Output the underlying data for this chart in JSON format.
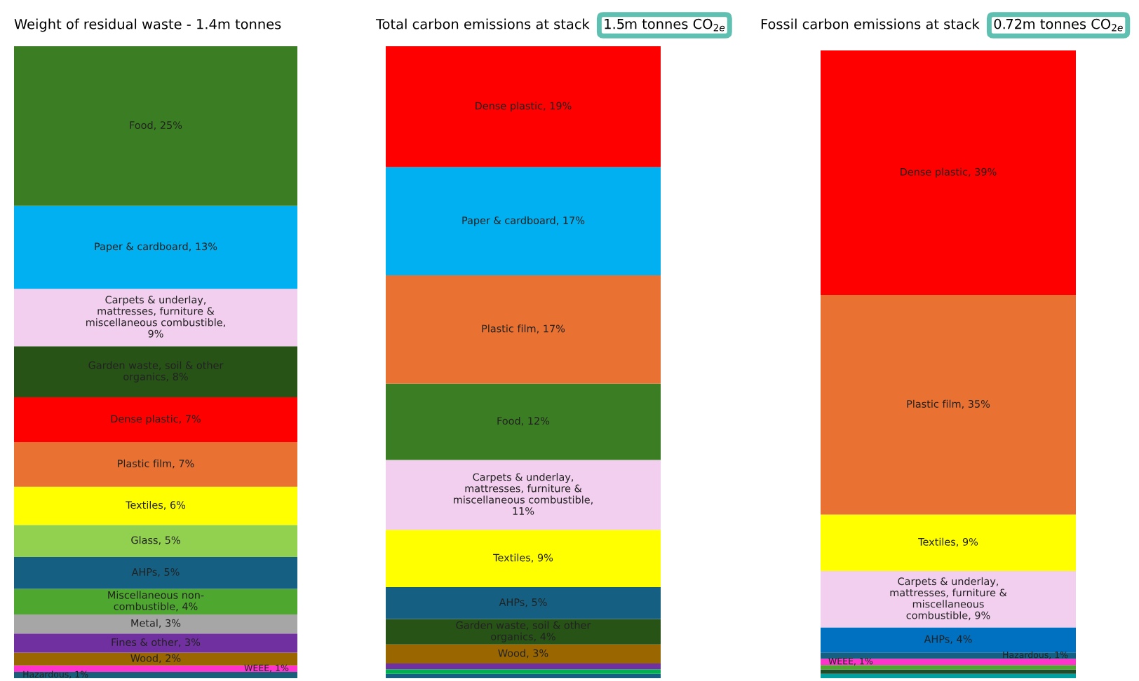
{
  "chart_data": [
    {
      "type": "bar",
      "stacked": true,
      "title": "Weight of residual waste - 1.4m tonnes",
      "categories": [
        null
      ],
      "series": [
        {
          "color": "#1a5f7a",
          "values": [
            1
          ],
          "value_labels": [
            "Hazardous, 1%"
          ]
        },
        {
          "color": "#ff33cc",
          "values": [
            1
          ],
          "value_labels": [
            "WEEE, 1%"
          ]
        },
        {
          "color": "#996600",
          "values": [
            2
          ],
          "value_labels": [
            "Wood, 2%"
          ]
        },
        {
          "color": "#7030a0",
          "values": [
            3
          ],
          "value_labels": [
            "Fines & other, 3%"
          ]
        },
        {
          "color": "#a6a6a6",
          "values": [
            3
          ],
          "value_labels": [
            "Metal, 3%"
          ]
        },
        {
          "color": "#4ea72e",
          "values": [
            4
          ],
          "value_labels": [
            "Miscellaneous non-\ncombustible, 4%"
          ]
        },
        {
          "color": "#156082",
          "values": [
            5
          ],
          "value_labels": [
            "AHPs, 5%"
          ]
        },
        {
          "color": "#92d050",
          "values": [
            5
          ],
          "value_labels": [
            "Glass, 5%"
          ]
        },
        {
          "color": "#ffff00",
          "values": [
            6
          ],
          "value_labels": [
            "Textiles, 6%"
          ]
        },
        {
          "color": "#e97132",
          "values": [
            7
          ],
          "value_labels": [
            "Plastic film, 7%"
          ]
        },
        {
          "color": "#ff0000",
          "values": [
            7
          ],
          "value_labels": [
            "Dense plastic, 7%"
          ]
        },
        {
          "color": "#275317",
          "values": [
            8
          ],
          "value_labels": [
            "Garden waste, soil & other\norganics, 8%"
          ]
        },
        {
          "color": "#f2cfee",
          "values": [
            9
          ],
          "value_labels": [
            "Carpets & underlay,\nmattresses, furniture &\nmiscellaneous combustible,\n9%"
          ]
        },
        {
          "color": "#00b0f0",
          "values": [
            13
          ],
          "value_labels": [
            "Paper & cardboard, 13%"
          ]
        },
        {
          "color": "#3a7d22",
          "values": [
            25
          ],
          "value_labels": [
            "Food, 25%"
          ]
        }
      ]
    },
    {
      "type": "bar",
      "stacked": true,
      "title": "Total carbon emissions at stack",
      "annotations": [
        "1.5m tonnes CO$_{2e}$"
      ],
      "categories": [
        null
      ],
      "series": [
        {
          "color": "#156082",
          "values": [
            0.7
          ],
          "value_labels": [
            null
          ]
        },
        {
          "color": "#00b050",
          "values": [
            0.7
          ],
          "value_labels": [
            null
          ]
        },
        {
          "color": "#7030a0",
          "values": [
            0.9
          ],
          "value_labels": [
            null
          ]
        },
        {
          "color": "#996600",
          "values": [
            3
          ],
          "value_labels": [
            "Wood, 3%"
          ]
        },
        {
          "color": "#275317",
          "values": [
            4
          ],
          "value_labels": [
            "Garden waste, soil & other\norganics, 4%"
          ]
        },
        {
          "color": "#156082",
          "values": [
            5
          ],
          "value_labels": [
            "AHPs, 5%"
          ]
        },
        {
          "color": "#ffff00",
          "values": [
            9
          ],
          "value_labels": [
            "Textiles, 9%"
          ]
        },
        {
          "color": "#f2cfee",
          "values": [
            11
          ],
          "value_labels": [
            "Carpets & underlay,\nmattresses, furniture &\nmiscellaneous combustible,\n11%"
          ]
        },
        {
          "color": "#3a7d22",
          "values": [
            12
          ],
          "value_labels": [
            "Food, 12%"
          ]
        },
        {
          "color": "#e97132",
          "values": [
            17
          ],
          "value_labels": [
            "Plastic film, 17%"
          ]
        },
        {
          "color": "#00b0f0",
          "values": [
            17
          ],
          "value_labels": [
            "Paper & cardboard, 17%"
          ]
        },
        {
          "color": "#ff0000",
          "values": [
            19
          ],
          "value_labels": [
            "Dense plastic, 19%"
          ]
        }
      ]
    },
    {
      "type": "bar",
      "stacked": true,
      "title": "Fossil carbon emissions at stack",
      "annotations": [
        "0.72m tonnes CO$_{2e}$"
      ],
      "categories": [
        null
      ],
      "series": [
        {
          "color": "#00a0a0",
          "values": [
            0.7
          ],
          "value_labels": [
            null
          ]
        },
        {
          "color": "#1e4d2b",
          "values": [
            0.7
          ],
          "value_labels": [
            null
          ]
        },
        {
          "color": "#4ea72e",
          "values": [
            0.7
          ],
          "value_labels": [
            null
          ]
        },
        {
          "color": "#ff33cc",
          "values": [
            1
          ],
          "value_labels": [
            "WEEE, 1%"
          ]
        },
        {
          "color": "#156082",
          "values": [
            1
          ],
          "value_labels": [
            "Hazardous, 1%"
          ]
        },
        {
          "color": "#0070c0",
          "values": [
            4
          ],
          "value_labels": [
            "AHPs, 4%"
          ]
        },
        {
          "color": "#f2cfee",
          "values": [
            9
          ],
          "value_labels": [
            "Carpets & underlay,\nmattresses, furniture &\nmiscellaneous\ncombustible, 9%"
          ]
        },
        {
          "color": "#ffff00",
          "values": [
            9
          ],
          "value_labels": [
            "Textiles, 9%"
          ]
        },
        {
          "color": "#e97132",
          "values": [
            35
          ],
          "value_labels": [
            "Plastic film, 35%"
          ]
        },
        {
          "color": "#ff0000",
          "values": [
            39
          ],
          "value_labels": [
            "Dense plastic, 39%"
          ]
        }
      ]
    }
  ]
}
